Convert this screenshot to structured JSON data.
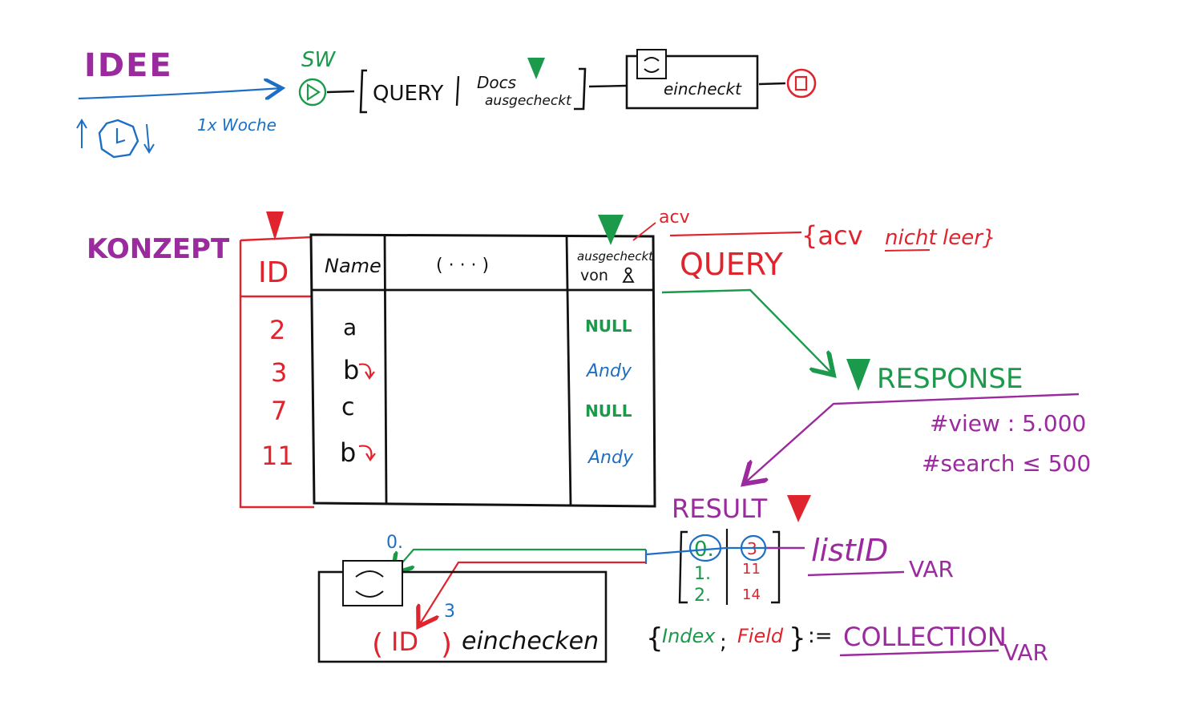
{
  "colors": {
    "purple": "#9b2a9e",
    "blue": "#1d6fc4",
    "green": "#1a9a4a",
    "red": "#e0242e",
    "black": "#111111"
  },
  "idea": {
    "label": "IDEE",
    "frequency": "1x Woche",
    "start": "SW",
    "query": "QUERY",
    "docs": "Docs",
    "docs_sub": "ausgecheckt",
    "checkin": "eincheckt"
  },
  "concept": {
    "label": "KONZEPT",
    "table": {
      "headers": [
        "ID",
        "Name",
        "( · · · )",
        "ausgecheckt",
        "von"
      ],
      "rows": [
        {
          "id": "2",
          "name": "a",
          "checked_out_by": "NULL"
        },
        {
          "id": "3",
          "name": "b",
          "checked_out_by": "Andy"
        },
        {
          "id": "7",
          "name": "c",
          "checked_out_by": "NULL"
        },
        {
          "id": "11",
          "name": "b",
          "checked_out_by": "Andy"
        }
      ]
    },
    "acv": "acv",
    "filter_open": "{acv",
    "filter_nicht": "nicht",
    "filter_leer": "leer}",
    "query": "QUERY",
    "response": "RESPONSE",
    "view": "#view : 5.000",
    "search": "#search ≤ 500",
    "result": "RESULT",
    "list_index": [
      "0.",
      "1.",
      "2."
    ],
    "list_values": [
      "3",
      "11",
      "14"
    ],
    "list_id": "listID",
    "var1": "VAR",
    "index_word": "Index",
    "field_word": "Field",
    "collection": "COLLECTION",
    "var2": "VAR",
    "loop_index": "0.",
    "loop_value": "3",
    "id_word": "ID",
    "checkin_word": "einchecken"
  }
}
